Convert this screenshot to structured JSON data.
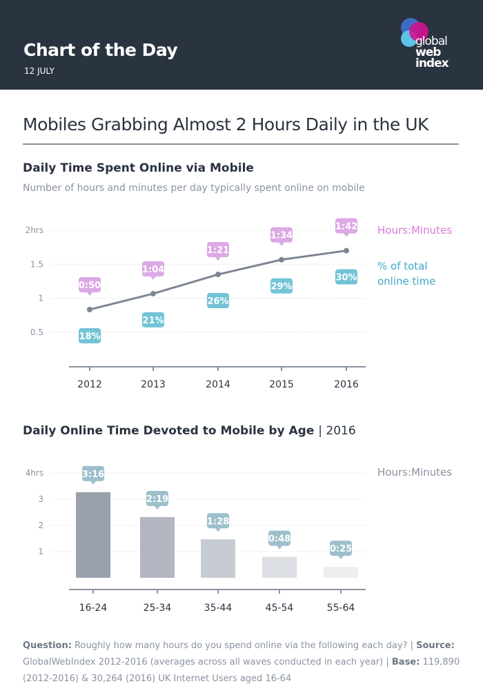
{
  "header": {
    "title": "Chart of the Day",
    "date": "12 JULY",
    "logo_text": [
      "global",
      "web",
      "index"
    ]
  },
  "main_title": "Mobiles Grabbing Almost 2 Hours Daily in the UK",
  "colors": {
    "header_bg": "#2a3340",
    "pink": "#dda8e6",
    "blue": "#72c3d6",
    "bar_label": "#9dbfcb",
    "line": "#7d8593"
  },
  "chart_data": [
    {
      "type": "line",
      "title": "Daily Time Spent Online via Mobile",
      "subtitle": "Number of hours and minutes per day typically spent online on mobile",
      "categories": [
        "2012",
        "2013",
        "2014",
        "2015",
        "2016"
      ],
      "values": [
        0.833,
        1.067,
        1.35,
        1.567,
        1.7
      ],
      "time_labels": [
        "0:50",
        "1:04",
        "1:21",
        "1:34",
        "1:42"
      ],
      "pct_labels": [
        "18%",
        "21%",
        "26%",
        "29%",
        "30%"
      ],
      "yticks": [
        {
          "v": 2,
          "label": "2hrs"
        },
        {
          "v": 1.5,
          "label": "1.5"
        },
        {
          "v": 1,
          "label": "1"
        },
        {
          "v": 0.5,
          "label": "0.5"
        }
      ],
      "ylim": [
        0,
        2
      ],
      "grid": true,
      "legend": {
        "time": "Hours:Minutes",
        "pct": "% of total online time"
      }
    },
    {
      "type": "bar",
      "title": "Daily Online Time Devoted to Mobile by Age",
      "title_suffix": "| 2016",
      "categories": [
        "16-24",
        "25-34",
        "35-44",
        "45-54",
        "55-64"
      ],
      "values": [
        3.267,
        2.317,
        1.467,
        0.8,
        0.417
      ],
      "time_labels": [
        "3:16",
        "2:19",
        "1:28",
        "0:48",
        "0:25"
      ],
      "bar_colors": [
        "#9aa1ad",
        "#b1b6c0",
        "#c7cbd3",
        "#dcdfe3",
        "#eceef0"
      ],
      "yticks": [
        {
          "v": 4,
          "label": "4hrs"
        },
        {
          "v": 3,
          "label": "3"
        },
        {
          "v": 2,
          "label": "2"
        },
        {
          "v": 1,
          "label": "1"
        }
      ],
      "ylim": [
        0,
        4
      ],
      "grid": true,
      "legend": {
        "time": "Hours:Minutes"
      }
    }
  ],
  "footer": {
    "question_label": "Question:",
    "question": " Roughly how many hours do you spend online via the following each day? | ",
    "source_label": "Source:",
    "source": " GlobalWebIndex 2012-2016 (averages across all waves conducted in each year) | ",
    "base_label": "Base:",
    "base": " 119,890 (2012-2016) & 30,264 (2016) UK Internet Users aged 16-64"
  }
}
